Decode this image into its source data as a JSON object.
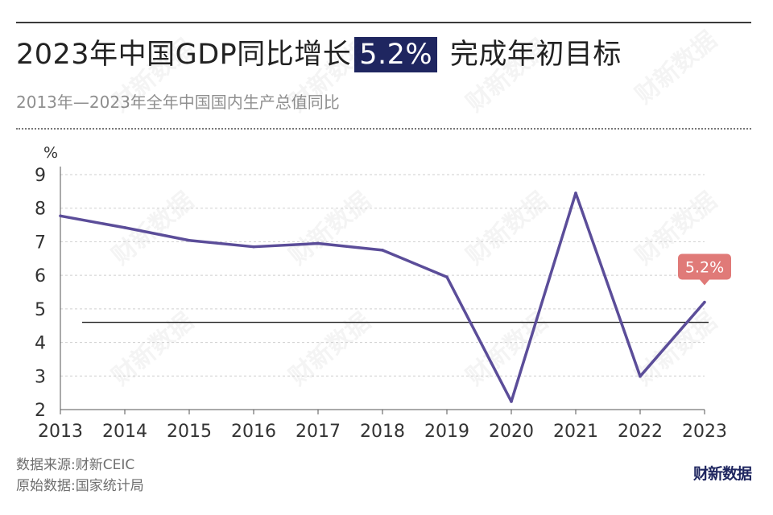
{
  "header": {
    "title_before": "2023年中国GDP同比增长",
    "title_highlight": "5.2%",
    "title_after": " 完成年初目标",
    "subtitle": "2013年—2023年全年中国国内生产总值同比"
  },
  "footer": {
    "source": "数据来源:财新CEIC",
    "original_source": "原始数据:国家统计局",
    "brand": "财新数据"
  },
  "watermark": "财新数据",
  "colors": {
    "line": "#5b4d99",
    "highlight_bg": "#1f2660",
    "callout": "#e07a78",
    "reference_line": "#222222",
    "grid": "#cfcfcf"
  },
  "chart_data": {
    "type": "line",
    "x": [
      "2013",
      "2014",
      "2015",
      "2016",
      "2017",
      "2018",
      "2019",
      "2020",
      "2021",
      "2022",
      "2023"
    ],
    "series": [
      {
        "values": [
          7.77,
          7.42,
          7.04,
          6.85,
          6.95,
          6.75,
          5.95,
          2.24,
          8.45,
          2.99,
          5.2
        ]
      }
    ],
    "y_unit": "%",
    "ylim": [
      2,
      9
    ],
    "yticks": [
      "2",
      "3",
      "4",
      "5",
      "6",
      "7",
      "8",
      "9"
    ],
    "grid": "horizontal dashed",
    "reference_line": {
      "y": 4.6
    },
    "callout": {
      "x": "2023",
      "label": "5.2%"
    }
  }
}
